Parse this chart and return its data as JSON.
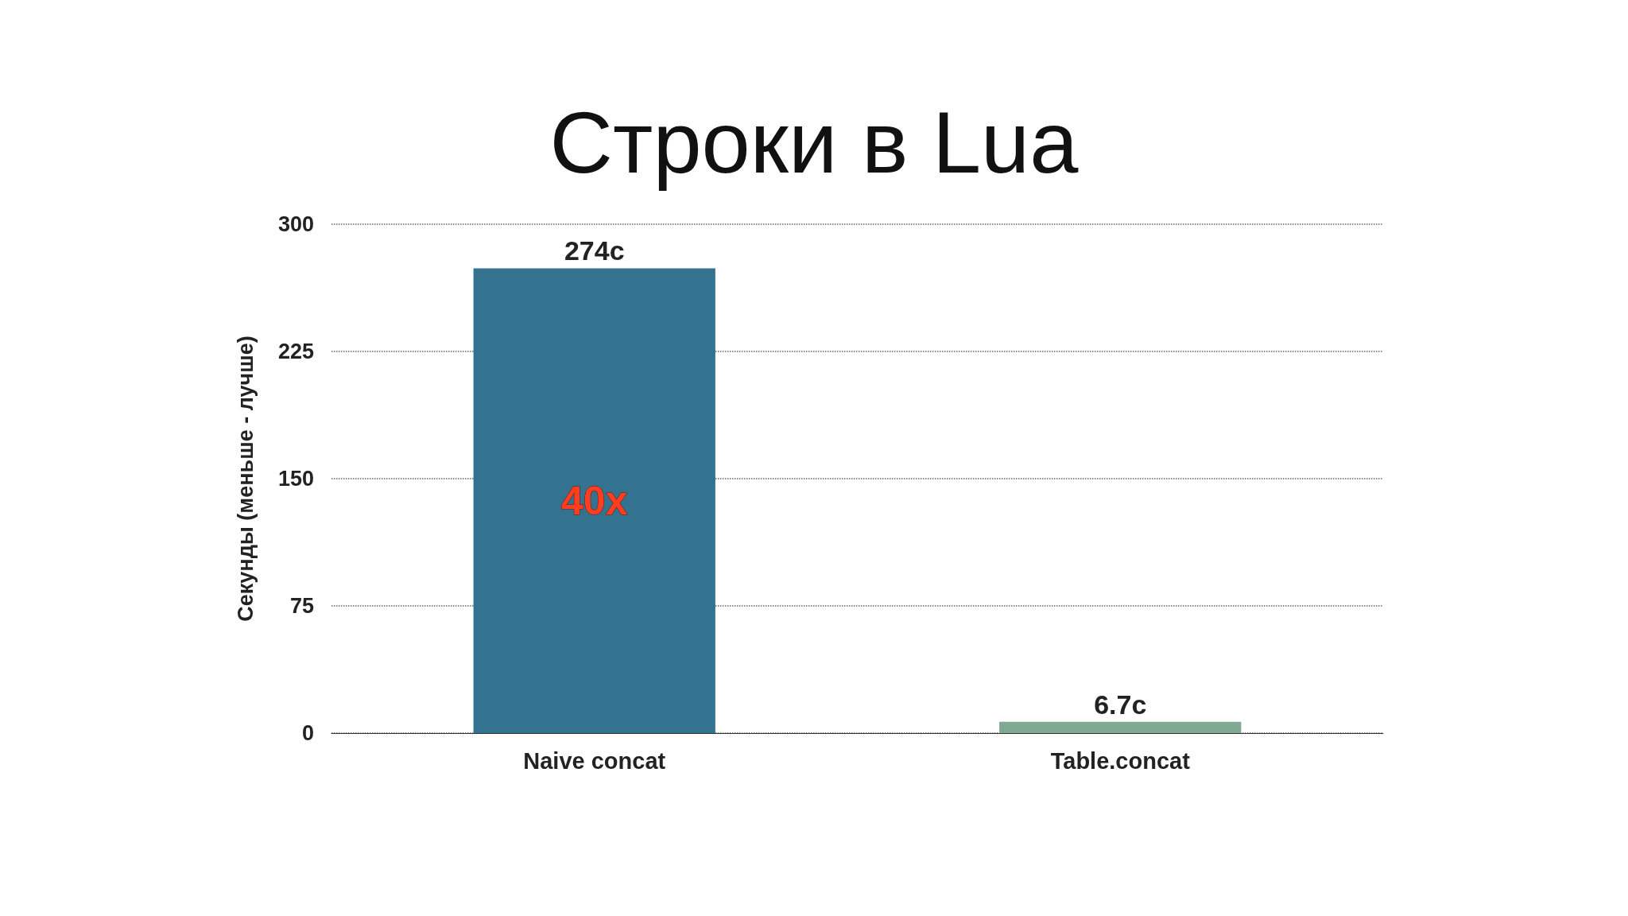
{
  "chart_data": {
    "type": "bar",
    "title": "Строки в Lua",
    "ylabel": "Секунды (меньше - лучше)",
    "categories": [
      "Naive concat",
      "Table.concat"
    ],
    "values": [
      274,
      6.7
    ],
    "colors": [
      "#33738f",
      "#80a893"
    ],
    "value_labels": [
      "274c",
      "6.7c"
    ],
    "annotations": [
      "40x"
    ],
    "ylim": [
      0,
      300
    ],
    "yticks": [
      0,
      75,
      150,
      225,
      300
    ],
    "grid": "y",
    "line_style": "dotted"
  }
}
